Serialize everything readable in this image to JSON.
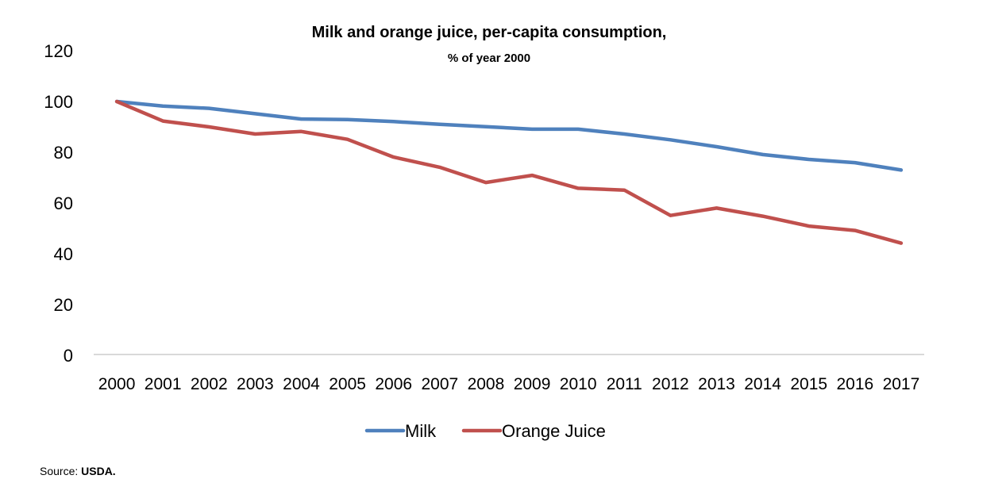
{
  "chart_data": {
    "type": "line",
    "title": "Milk and orange juice, per-capita consumption,",
    "subtitle": "% of year 2000",
    "xlabel": "",
    "ylabel": "",
    "ylim": [
      0,
      120
    ],
    "yticks": [
      0,
      20,
      40,
      60,
      80,
      100,
      120
    ],
    "grid": false,
    "legend_position": "bottom",
    "categories": [
      "2000",
      "2001",
      "2002",
      "2003",
      "2004",
      "2005",
      "2006",
      "2007",
      "2008",
      "2009",
      "2010",
      "2011",
      "2012",
      "2013",
      "2014",
      "2015",
      "2016",
      "2017"
    ],
    "series": [
      {
        "name": "Milk",
        "color": "#4f81bd",
        "values": [
          100,
          98.2,
          97.3,
          95.2,
          93.1,
          92.9,
          92.1,
          91.0,
          90.1,
          89.1,
          89.1,
          87.2,
          84.9,
          82.2,
          79.1,
          77.2,
          75.9,
          73.0
        ]
      },
      {
        "name": "Orange Juice",
        "color": "#c0504d",
        "values": [
          100,
          92.3,
          90.0,
          87.2,
          88.2,
          85.1,
          78.1,
          74.1,
          68.1,
          70.9,
          65.8,
          65.1,
          55.1,
          58.0,
          54.8,
          50.9,
          49.2,
          44.2
        ]
      }
    ]
  },
  "source": {
    "prefix": "Source: ",
    "name": "USDA."
  }
}
